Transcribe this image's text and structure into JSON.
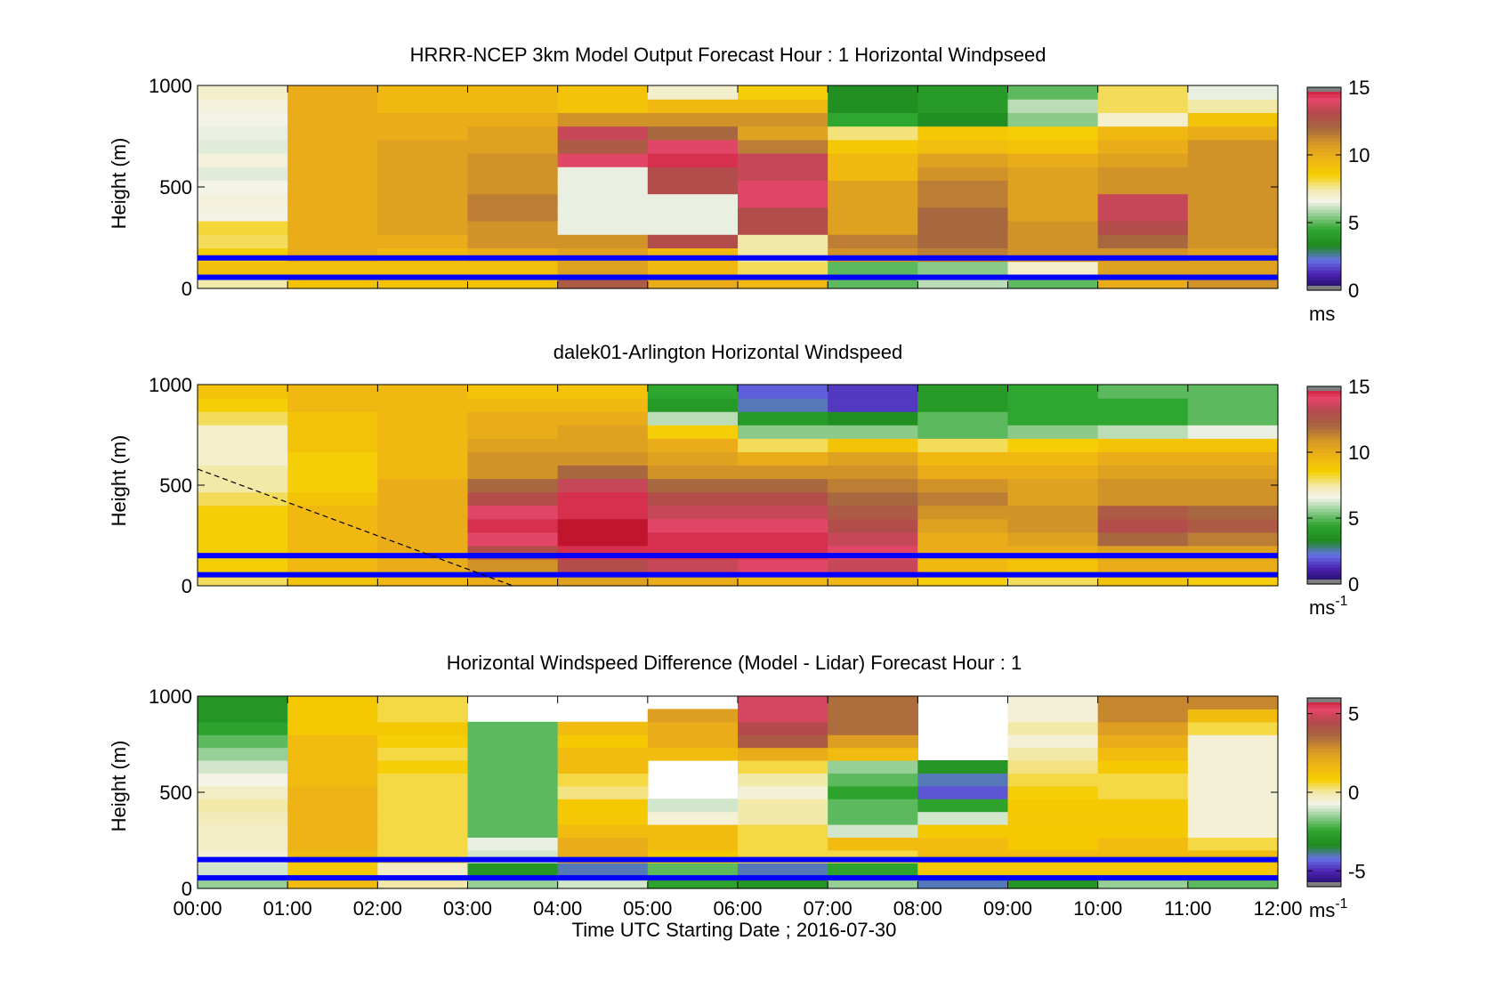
{
  "figure": {
    "xlabel": "Time UTC  Starting Date ; 2016-07-30",
    "x_tick_labels": [
      "00:00",
      "01:00",
      "02:00",
      "03:00",
      "04:00",
      "05:00",
      "06:00",
      "07:00",
      "08:00",
      "09:00",
      "10:00",
      "11:00",
      "12:00"
    ],
    "line_color": "#0000ff"
  },
  "chart_data": [
    {
      "type": "heatmap",
      "title": "HRRR-NCEP 3km Model Output   Forecast Hour : 1 Horizontal Windpseed",
      "ylabel": "Height (m)",
      "x_range_hours": [
        0,
        12
      ],
      "ylim": [
        0,
        1000
      ],
      "y_ticks": [
        0,
        500,
        1000
      ],
      "colorbar": {
        "min": 0,
        "max": 15,
        "ticks": [
          0,
          5,
          10,
          15
        ],
        "unit_label": "ms",
        "unit_sup": ""
      },
      "h_lines_m": [
        55,
        150
      ],
      "column_hours": [
        0,
        1,
        2,
        3,
        4,
        5,
        6,
        7,
        8,
        9,
        10,
        11
      ],
      "values": [
        [
          7.5,
          9.2,
          8.5,
          8.0,
          8.2,
          6.7,
          6.8,
          6.6,
          6.4,
          6.8,
          6.4,
          6.5,
          6.6,
          6.8,
          7.0
        ],
        [
          9.0,
          9.2,
          10.0,
          10.0,
          10.0,
          10.0,
          10.0,
          10.0,
          10.0,
          10.0,
          10.0,
          10.0,
          10.0,
          10.0,
          10.0
        ],
        [
          9.0,
          9.2,
          9.5,
          10.0,
          10.5,
          10.5,
          10.5,
          10.5,
          10.5,
          10.5,
          10.5,
          10.0,
          10.0,
          9.5,
          9.5
        ],
        [
          9.0,
          9.2,
          10.0,
          11.0,
          11.0,
          11.5,
          11.5,
          11.0,
          11.0,
          11.0,
          10.5,
          10.5,
          10.0,
          9.5,
          9.5
        ],
        [
          12.5,
          10.5,
          10.5,
          11.0,
          6.5,
          6.5,
          6.5,
          6.5,
          6.5,
          14.0,
          12.5,
          13.5,
          11.0,
          9.0,
          9.0
        ],
        [
          10.0,
          9.5,
          9.5,
          13.0,
          6.5,
          6.5,
          6.5,
          13.0,
          13.0,
          14.5,
          14.0,
          12.0,
          11.0,
          9.5,
          7.0
        ],
        [
          9.5,
          8.0,
          7.5,
          7.5,
          13.0,
          13.0,
          14.0,
          14.0,
          13.5,
          13.5,
          11.5,
          10.5,
          11.0,
          9.5,
          8.5
        ],
        [
          5.0,
          5.0,
          11.0,
          11.5,
          10.5,
          10.5,
          10.5,
          10.5,
          9.5,
          9.5,
          8.8,
          7.8,
          4.5,
          3.5,
          3.5
        ],
        [
          6.0,
          5.5,
          11.5,
          12.0,
          12.0,
          12.0,
          11.5,
          11.5,
          11.0,
          10.5,
          9.3,
          8.8,
          3.5,
          4.0,
          4.0
        ],
        [
          5.0,
          7.0,
          11.0,
          11.0,
          11.0,
          10.5,
          10.5,
          10.5,
          10.5,
          10.0,
          9.0,
          8.5,
          5.5,
          6.0,
          5.0
        ],
        [
          10.0,
          10.5,
          11.0,
          12.0,
          13.0,
          13.5,
          13.5,
          11.0,
          11.0,
          10.5,
          10.0,
          9.5,
          7.0,
          8.0,
          8.0
        ],
        [
          11.0,
          10.5,
          10.5,
          11.0,
          11.0,
          11.0,
          11.0,
          11.0,
          11.0,
          11.0,
          11.0,
          10.0,
          9.0,
          7.5,
          6.5
        ]
      ]
    },
    {
      "type": "heatmap",
      "title": "dalek01-Arlington  Horizontal Windspeed",
      "ylabel": "Height (m)",
      "x_range_hours": [
        0,
        12
      ],
      "ylim": [
        0,
        1000
      ],
      "y_ticks": [
        0,
        500,
        1000
      ],
      "colorbar": {
        "min": 0,
        "max": 15,
        "ticks": [
          0,
          5,
          10,
          15
        ],
        "unit_label": "ms",
        "unit_sup": "-1"
      },
      "h_lines_m": [
        55,
        150
      ],
      "dashed_line": {
        "x_hours": [
          0,
          3.5
        ],
        "y_m": [
          580,
          0
        ]
      },
      "column_hours": [
        0,
        1,
        2,
        3,
        4,
        5,
        6,
        7,
        8,
        9,
        10,
        11
      ],
      "values": [
        [
          8.0,
          8.5,
          8.5,
          8.5,
          8.5,
          8.5,
          8.0,
          7.5,
          7.5,
          7.0,
          7.0,
          7.0,
          8.0,
          8.5,
          9.0
        ],
        [
          9.0,
          9.5,
          9.5,
          9.5,
          9.5,
          9.5,
          9.0,
          8.5,
          8.5,
          8.5,
          9.0,
          9.0,
          9.0,
          9.5,
          9.5
        ],
        [
          9.5,
          10.0,
          10.0,
          10.0,
          10.0,
          10.0,
          10.0,
          10.0,
          9.5,
          9.5,
          9.5,
          9.5,
          9.5,
          9.5,
          9.5
        ],
        [
          10.0,
          11.0,
          13.0,
          14.0,
          14.5,
          14.0,
          13.0,
          12.0,
          11.0,
          11.0,
          10.5,
          10.0,
          10.0,
          9.5,
          9.0
        ],
        [
          10.5,
          13.0,
          14.5,
          15.0,
          15.0,
          14.5,
          14.5,
          13.5,
          12.0,
          11.0,
          10.5,
          10.5,
          10.0,
          9.5,
          9.0
        ],
        [
          10.0,
          13.5,
          14.5,
          14.5,
          14.0,
          13.5,
          13.0,
          12.0,
          11.0,
          10.5,
          10.0,
          8.5,
          6.0,
          4.0,
          4.5
        ],
        [
          9.5,
          14.0,
          14.5,
          14.5,
          14.0,
          13.5,
          13.0,
          12.0,
          11.0,
          10.0,
          8.0,
          5.5,
          4.0,
          2.5,
          2.0
        ],
        [
          9.5,
          13.5,
          14.0,
          13.5,
          13.0,
          12.5,
          12.0,
          11.5,
          11.0,
          10.5,
          9.0,
          5.5,
          3.5,
          1.5,
          1.5
        ],
        [
          8.5,
          9.5,
          10.0,
          10.0,
          10.5,
          11.0,
          11.5,
          11.0,
          10.0,
          9.5,
          8.0,
          5.0,
          5.0,
          4.0,
          4.0
        ],
        [
          8.0,
          9.0,
          10.0,
          10.5,
          11.0,
          11.0,
          10.5,
          10.5,
          10.0,
          9.5,
          8.5,
          5.5,
          4.5,
          4.5,
          4.5
        ],
        [
          9.0,
          10.0,
          10.5,
          12.0,
          13.0,
          12.5,
          11.0,
          11.0,
          10.5,
          10.0,
          9.0,
          6.0,
          4.5,
          4.5,
          5.0
        ],
        [
          8.5,
          10.0,
          10.5,
          11.5,
          12.5,
          12.0,
          11.0,
          11.0,
          10.5,
          10.0,
          9.0,
          6.5,
          5.0,
          5.0,
          5.0
        ]
      ]
    },
    {
      "type": "heatmap",
      "title": "Horizontal Windspeed Difference (Model - Lidar) Forecast Hour : 1",
      "ylabel": "Height (m)",
      "x_range_hours": [
        0,
        12
      ],
      "ylim": [
        0,
        1000
      ],
      "y_ticks": [
        0,
        500,
        1000
      ],
      "colorbar": {
        "min": -6,
        "max": 6,
        "ticks": [
          -5,
          0,
          5
        ],
        "tick_labels": [
          "-5",
          "0",
          "5"
        ],
        "unit_label": "ms",
        "unit_sup": "-1"
      },
      "h_lines_m": [
        55,
        150
      ],
      "column_hours": [
        0,
        1,
        2,
        3,
        4,
        5,
        6,
        7,
        8,
        9,
        10,
        11
      ],
      "values": [
        [
          -1.5,
          -1.0,
          -0.5,
          -0.3,
          -0.3,
          -0.2,
          0.0,
          -0.3,
          -0.7,
          -1.0,
          -1.5,
          -2.0,
          -2.5,
          -3.0,
          -3.0
        ],
        [
          1.5,
          1.0,
          1.5,
          1.8,
          1.8,
          1.8,
          1.8,
          1.8,
          1.5,
          1.5,
          1.5,
          1.5,
          1.0,
          1.0,
          1.0
        ],
        [
          0.0,
          -0.3,
          0.5,
          0.5,
          0.5,
          0.5,
          0.5,
          0.5,
          0.5,
          0.8,
          0.5,
          0.8,
          1.0,
          0.5,
          0.5
        ],
        [
          -1.5,
          -3.0,
          -1.0,
          -0.8,
          -2.0,
          -2.0,
          -2.0,
          -2.0,
          -2.0,
          -2.0,
          -2.0,
          -2.0,
          -2.0,
          null,
          null
        ],
        [
          -1.0,
          -4.0,
          2.0,
          2.0,
          1.5,
          1.0,
          1.0,
          0.2,
          0.5,
          1.5,
          1.5,
          1.0,
          1.5,
          null,
          null
        ],
        [
          -2.5,
          -2.0,
          1.0,
          1.5,
          1.5,
          -0.5,
          -1.0,
          null,
          null,
          null,
          1.5,
          2.0,
          2.0,
          2.5,
          null
        ],
        [
          -3.0,
          -4.0,
          0.5,
          0.5,
          0.5,
          0.0,
          0.0,
          -0.5,
          0.0,
          0.5,
          2.0,
          4.0,
          4.5,
          5.0,
          5.0
        ],
        [
          -1.5,
          -2.5,
          0.5,
          1.5,
          -1.0,
          -2.0,
          -2.0,
          -2.5,
          -2.0,
          -1.5,
          1.5,
          2.5,
          3.5,
          3.5,
          3.5
        ],
        [
          -4.0,
          1.0,
          1.5,
          1.5,
          1.0,
          -1.0,
          -2.5,
          -4.5,
          -4.0,
          -3.0,
          null,
          null,
          null,
          null,
          null
        ],
        [
          -3.0,
          1.0,
          1.5,
          1.0,
          1.0,
          1.0,
          1.0,
          0.8,
          0.5,
          0.2,
          0.0,
          -0.5,
          0.0,
          -0.5,
          -0.5
        ],
        [
          -1.5,
          1.0,
          1.5,
          1.5,
          1.0,
          1.0,
          1.0,
          0.5,
          0.5,
          1.0,
          1.5,
          2.0,
          2.5,
          3.0,
          3.0
        ],
        [
          -2.0,
          1.0,
          1.5,
          0.5,
          -0.5,
          -0.5,
          -0.5,
          -0.5,
          -0.5,
          -0.5,
          -0.5,
          -0.5,
          0.5,
          1.5,
          3.0
        ]
      ]
    }
  ]
}
